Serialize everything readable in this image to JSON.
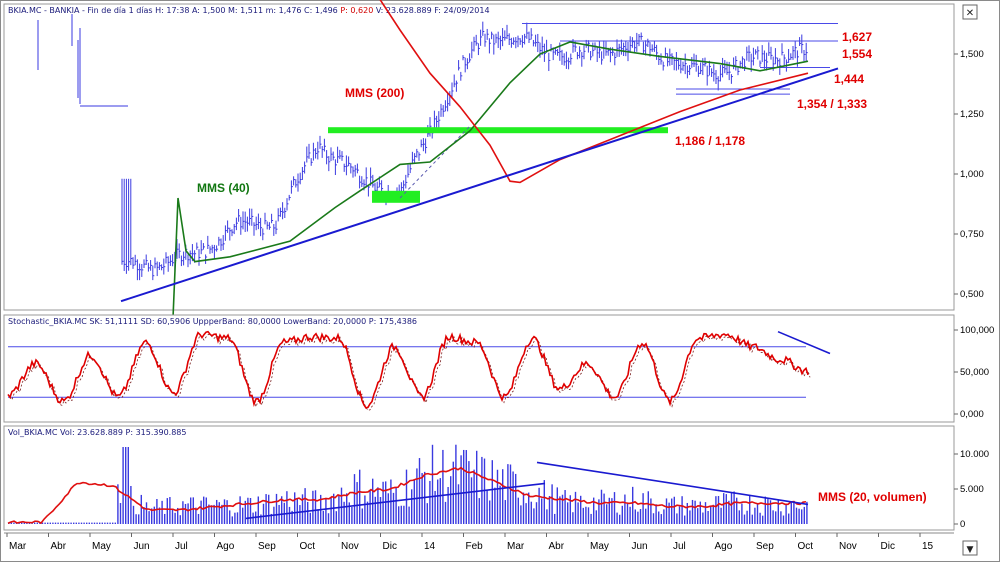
{
  "header": {
    "price": "BKIA.MC - BANKIA - Fin de día 1 días H: 17:38 A: 1,500 M: 1,511 m: 1,476 C: 1,496 ",
    "price_red": "P: 0,620",
    "price_tail": " V: 23.628.889 F: 24/09/2014",
    "stoch": "Stochastic_BKIA.MC SK: 51,1111 SD: 60,5906 UppperBand: 80,0000 LowerBand: 20,0000 P: 175,4386",
    "vol": "Vol_BKIA.MC Vol: 23.628.889 P: 315.390.885"
  },
  "window_buttons": {
    "close": "✕",
    "scroll": "▼"
  },
  "x_axis": {
    "labels": [
      "Mar",
      "Abr",
      "May",
      "Jun",
      "Jul",
      "Ago",
      "Sep",
      "Oct",
      "Nov",
      "Dic",
      "14",
      "Feb",
      "Mar",
      "Abr",
      "May",
      "Jun",
      "Jul",
      "Ago",
      "Sep",
      "Oct",
      "Nov",
      "Dic",
      "15"
    ]
  },
  "price_axis": {
    "ticks": [
      0.5,
      0.75,
      1.0,
      1.25,
      1.5
    ],
    "labels": [
      "0,500",
      "0,750",
      "1,000",
      "1,250",
      "1,500"
    ]
  },
  "stoch_axis": {
    "ticks": [
      0,
      50,
      100
    ],
    "labels": [
      "0,000",
      "50,000",
      "100,000"
    ]
  },
  "vol_axis": {
    "ticks": [
      0,
      5,
      10
    ],
    "labels": [
      "0",
      "5.000",
      "10.000"
    ]
  },
  "annotations": {
    "r1627": "1,627",
    "r1554": "1,554",
    "r1444": "1,444",
    "r1354": "1,354 / 1,333",
    "s1186": "1,186 / 1,178",
    "mms200": "MMS (200)",
    "mms40": "MMS (40)",
    "mmsvol": "MMS (20, volumen)"
  },
  "colors": {
    "price": "#3a3ae0",
    "mms40": "#1a7a1a",
    "mms200": "#e01010",
    "trend": "#1a1ad0",
    "support": "#22ee22",
    "stoch": "#e00000",
    "grid_band": "#4a4ae8"
  },
  "chart_data": [
    {
      "type": "line",
      "title": "",
      "series": [
        {
          "name": "BKIA.MC",
          "x": [
            "2013-06",
            "2013-07",
            "2013-08",
            "2013-09",
            "2013-10",
            "2013-11",
            "2013-12",
            "2014-01",
            "2014-02",
            "2014-03",
            "2014-04",
            "2014-05",
            "2014-06",
            "2014-07",
            "2014-08",
            "2014-09"
          ],
          "values": [
            0.62,
            0.66,
            0.78,
            0.8,
            1.13,
            0.98,
            0.92,
            1.3,
            1.58,
            1.55,
            1.49,
            1.52,
            1.53,
            1.43,
            1.44,
            1.5
          ]
        },
        {
          "name": "MMS (40)",
          "x": [
            "2013-06",
            "2013-08",
            "2013-10",
            "2013-12",
            "2014-02",
            "2014-04",
            "2014-06",
            "2014-08",
            "2014-09"
          ],
          "values": [
            0.64,
            0.72,
            0.83,
            1.03,
            1.33,
            1.55,
            1.5,
            1.43,
            1.46
          ]
        },
        {
          "name": "MMS (200)",
          "x": [
            "2014-01",
            "2014-02",
            "2014-03",
            "2014-05",
            "2014-07",
            "2014-09"
          ],
          "values": [
            1.3,
            1.08,
            0.96,
            1.1,
            1.3,
            1.42
          ]
        }
      ],
      "levels": [
        1.627,
        1.554,
        1.444,
        1.354,
        1.333,
        1.186,
        1.178
      ],
      "ylim": [
        0.45,
        1.65
      ]
    },
    {
      "type": "line",
      "title": "",
      "series": [
        {
          "name": "SK",
          "values": [
            22,
            60,
            15,
            70,
            20,
            85,
            25,
            95,
            90,
            15,
            85,
            92,
            90,
            10,
            80,
            20,
            92,
            85,
            20,
            90,
            30,
            60,
            20,
            85,
            15,
            90,
            95,
            80,
            65,
            51
          ]
        }
      ],
      "upper_band": 80,
      "lower_band": 20,
      "ylim": [
        0,
        100
      ]
    },
    {
      "type": "bar",
      "title": "",
      "series": [
        {
          "name": "Vol_BKIA.MC",
          "values": [
            0.1,
            0.1,
            11.0,
            5.5,
            2.5,
            3.0,
            3.0,
            3.2,
            4.0,
            3.5,
            6.0,
            5.0,
            8.0,
            8.5,
            7.0,
            5.5,
            3.5,
            3.5,
            4.0,
            3.0,
            3.0,
            3.5,
            3.2,
            3.0
          ]
        },
        {
          "name": "MMS (20, volumen)",
          "values": [
            0.2,
            0.3,
            6.0,
            5.5,
            2.0,
            2.0,
            2.5,
            3.0,
            3.5,
            3.5,
            4.5,
            5.0,
            7.0,
            8.0,
            6.0,
            4.0,
            3.5,
            3.0,
            3.0,
            2.5,
            2.5,
            3.0,
            3.0,
            3.0
          ]
        }
      ],
      "ylim": [
        0,
        12
      ]
    }
  ]
}
